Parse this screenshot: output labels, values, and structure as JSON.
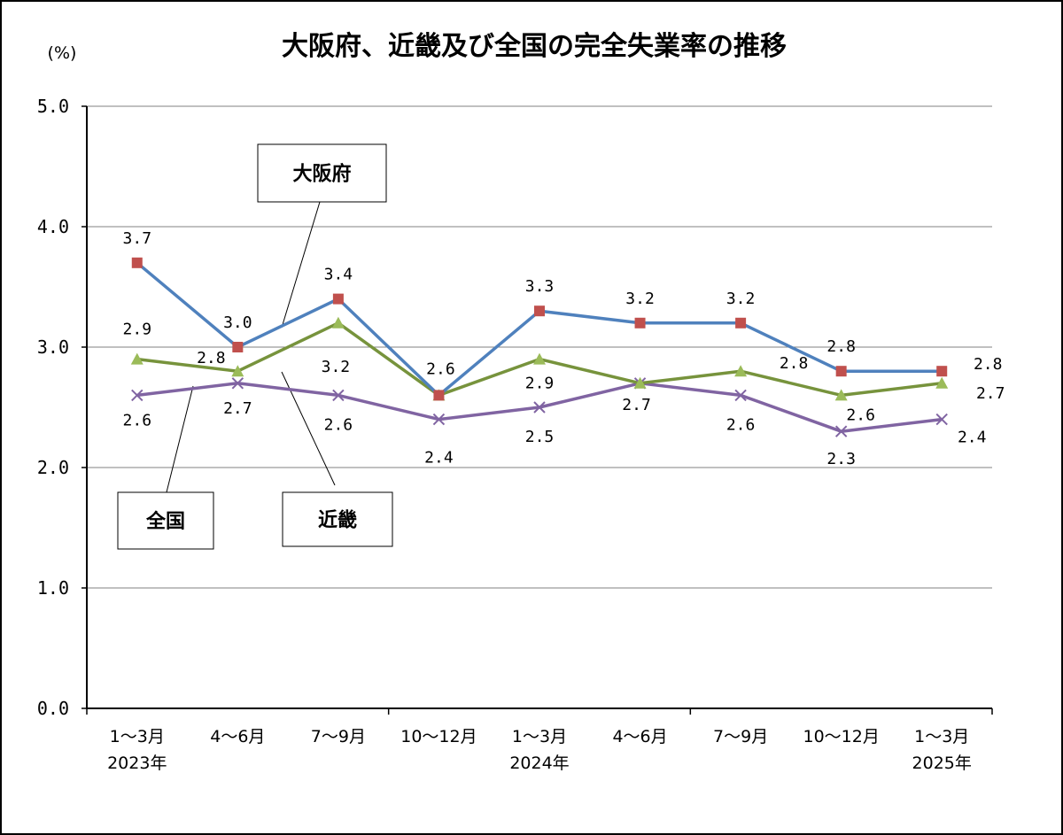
{
  "chart_data": {
    "type": "line",
    "title": "大阪府、近畿及び全国の完全失業率の推移",
    "unit_label": "(%)",
    "ylim": [
      0,
      5
    ],
    "y_ticks": [
      "0.0",
      "1.0",
      "2.0",
      "3.0",
      "4.0",
      "5.0"
    ],
    "grid": true,
    "categories": [
      [
        "1～3月",
        "2023年"
      ],
      [
        "4～6月",
        ""
      ],
      [
        "7～9月",
        ""
      ],
      [
        "10～12月",
        ""
      ],
      [
        "1～3月",
        "2024年"
      ],
      [
        "4～6月",
        ""
      ],
      [
        "7～9月",
        ""
      ],
      [
        "10～12月",
        ""
      ],
      [
        "1～3月",
        "2025年"
      ]
    ],
    "series": [
      {
        "name": "大阪府",
        "color": "#4F81BD",
        "marker": "square",
        "marker_color": "#C0504D",
        "values": [
          3.7,
          3.0,
          3.4,
          2.6,
          3.3,
          3.2,
          3.2,
          2.8,
          2.8
        ],
        "labels": [
          "3.7",
          "3.0",
          "3.4",
          "2.6",
          "3.3",
          "3.2",
          "3.2",
          "2.8",
          "2.8"
        ]
      },
      {
        "name": "近畿",
        "color": "#77933C",
        "marker": "triangle",
        "marker_color": "#9BBB59",
        "values": [
          2.9,
          2.8,
          3.2,
          2.6,
          2.9,
          2.7,
          2.8,
          2.6,
          2.7
        ],
        "labels": [
          "2.9",
          "2.8",
          "3.2",
          "",
          "2.9",
          "",
          "2.8",
          "2.6",
          "2.7"
        ]
      },
      {
        "name": "全国",
        "color": "#8064A2",
        "marker": "x",
        "marker_color": "#8064A2",
        "values": [
          2.6,
          2.7,
          2.6,
          2.4,
          2.5,
          2.7,
          2.6,
          2.3,
          2.4
        ],
        "labels": [
          "2.6",
          "2.7",
          "2.6",
          "2.4",
          "2.5",
          "2.7",
          "2.6",
          "2.3",
          "2.4"
        ]
      }
    ]
  }
}
